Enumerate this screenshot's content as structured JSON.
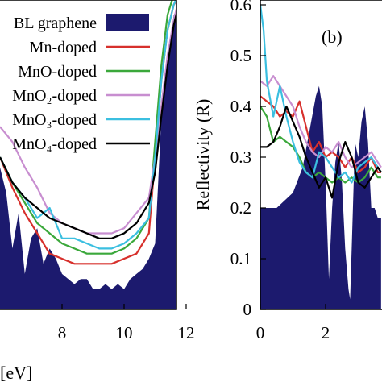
{
  "chart_data": [
    {
      "type": "line",
      "xlabel": "[eV]",
      "xlim": [
        6,
        12
      ],
      "x_ticks": [
        "8",
        "10",
        "12"
      ],
      "legend_position": "top-left",
      "series": [
        {
          "name": "BL graphene",
          "color": "#1c1a6e",
          "fill": true,
          "x": [
            6.0,
            6.2,
            6.4,
            6.6,
            6.8,
            7.0,
            7.2,
            7.4,
            7.6,
            7.8,
            8.0,
            8.2,
            8.4,
            8.6,
            8.8,
            9.0,
            9.2,
            9.4,
            9.6,
            9.8,
            10.0,
            10.2,
            10.4,
            10.6,
            10.8,
            11.0,
            11.1,
            11.2,
            11.4,
            11.6,
            11.8,
            12.0
          ],
          "y": [
            0.28,
            0.23,
            0.12,
            0.19,
            0.07,
            0.14,
            0.16,
            0.09,
            0.12,
            0.1,
            0.07,
            0.06,
            0.05,
            0.06,
            0.06,
            0.04,
            0.04,
            0.05,
            0.04,
            0.05,
            0.04,
            0.06,
            0.07,
            0.08,
            0.1,
            0.13,
            0.25,
            0.38,
            0.5,
            0.58,
            0.6,
            0.62
          ]
        },
        {
          "name": "Mn-doped",
          "color": "#d7302c",
          "x": [
            6.0,
            6.4,
            6.8,
            7.2,
            7.6,
            8.0,
            8.4,
            8.8,
            9.2,
            9.6,
            10.0,
            10.4,
            10.8,
            11.0,
            11.2,
            11.4,
            11.6,
            11.8,
            12.0
          ],
          "y": [
            0.3,
            0.24,
            0.19,
            0.15,
            0.11,
            0.1,
            0.09,
            0.09,
            0.09,
            0.09,
            0.1,
            0.11,
            0.15,
            0.3,
            0.45,
            0.55,
            0.6,
            0.62,
            0.63
          ]
        },
        {
          "name": "MnO-doped",
          "color": "#3ba83b",
          "x": [
            6.0,
            6.4,
            6.8,
            7.2,
            7.6,
            8.0,
            8.4,
            8.8,
            9.2,
            9.6,
            10.0,
            10.4,
            10.8,
            11.0,
            11.2,
            11.4,
            11.6,
            11.8,
            12.0
          ],
          "y": [
            0.3,
            0.25,
            0.21,
            0.17,
            0.15,
            0.13,
            0.12,
            0.11,
            0.11,
            0.11,
            0.12,
            0.14,
            0.18,
            0.33,
            0.48,
            0.58,
            0.62,
            0.64,
            0.65
          ]
        },
        {
          "name": "MnO₂-doped",
          "color": "#c88ed0",
          "x": [
            6.0,
            6.4,
            6.8,
            7.2,
            7.6,
            8.0,
            8.4,
            8.8,
            9.2,
            9.6,
            10.0,
            10.4,
            10.8,
            11.0,
            11.2,
            11.4,
            11.6,
            11.8,
            12.0
          ],
          "y": [
            0.36,
            0.33,
            0.28,
            0.24,
            0.19,
            0.17,
            0.16,
            0.15,
            0.15,
            0.15,
            0.16,
            0.19,
            0.22,
            0.3,
            0.4,
            0.5,
            0.57,
            0.62,
            0.65
          ]
        },
        {
          "name": "MnO₃-doped",
          "color": "#3bbfe0",
          "x": [
            6.0,
            6.4,
            6.8,
            7.2,
            7.6,
            8.0,
            8.4,
            8.8,
            9.2,
            9.6,
            10.0,
            10.4,
            10.8,
            11.0,
            11.2,
            11.4,
            11.6,
            11.8,
            12.0
          ],
          "y": [
            0.3,
            0.25,
            0.22,
            0.18,
            0.2,
            0.14,
            0.14,
            0.13,
            0.12,
            0.12,
            0.13,
            0.15,
            0.18,
            0.3,
            0.45,
            0.55,
            0.6,
            0.63,
            0.65
          ]
        },
        {
          "name": "MnO₄-doped",
          "color": "#000000",
          "x": [
            6.0,
            6.4,
            6.8,
            7.2,
            7.6,
            8.0,
            8.4,
            8.8,
            9.2,
            9.6,
            10.0,
            10.4,
            10.8,
            11.0,
            11.2,
            11.4,
            11.6,
            11.8,
            12.0
          ],
          "y": [
            0.3,
            0.25,
            0.22,
            0.2,
            0.18,
            0.17,
            0.16,
            0.15,
            0.14,
            0.14,
            0.15,
            0.17,
            0.21,
            0.27,
            0.38,
            0.48,
            0.56,
            0.61,
            0.64
          ]
        }
      ]
    },
    {
      "type": "line",
      "panel_label": "(b)",
      "ylabel": "Reflectivity (R)",
      "xlim": [
        0,
        3.7
      ],
      "ylim": [
        0,
        0.6
      ],
      "x_ticks": [
        "0",
        "2"
      ],
      "y_ticks": [
        "0",
        "0.1",
        "0.2",
        "0.3",
        "0.4",
        "0.5",
        "0.6"
      ],
      "series": [
        {
          "name": "BL graphene",
          "color": "#1c1a6e",
          "fill": true,
          "x": [
            0.0,
            0.5,
            1.0,
            1.3,
            1.5,
            1.7,
            1.8,
            1.9,
            2.0,
            2.1,
            2.2,
            2.3,
            2.4,
            2.5,
            2.6,
            2.7,
            2.75,
            2.8,
            2.9,
            3.0,
            3.1,
            3.2,
            3.3,
            3.4,
            3.5,
            3.6,
            3.7
          ],
          "y": [
            0.2,
            0.2,
            0.23,
            0.28,
            0.35,
            0.42,
            0.44,
            0.4,
            0.25,
            0.06,
            0.2,
            0.29,
            0.33,
            0.25,
            0.12,
            0.04,
            0.02,
            0.12,
            0.33,
            0.3,
            0.37,
            0.4,
            0.33,
            0.2,
            0.2,
            0.18,
            0.18
          ]
        },
        {
          "name": "Mn-doped",
          "color": "#d7302c",
          "x": [
            0.0,
            0.2,
            0.4,
            0.6,
            0.8,
            1.0,
            1.2,
            1.4,
            1.6,
            1.8,
            2.0,
            2.2,
            2.4,
            2.6,
            2.8,
            3.0,
            3.2,
            3.4,
            3.6,
            3.7
          ],
          "y": [
            0.42,
            0.41,
            0.4,
            0.38,
            0.39,
            0.38,
            0.41,
            0.36,
            0.31,
            0.33,
            0.3,
            0.31,
            0.3,
            0.28,
            0.3,
            0.27,
            0.28,
            0.3,
            0.27,
            0.27
          ]
        },
        {
          "name": "MnO-doped",
          "color": "#3ba83b",
          "x": [
            0.0,
            0.2,
            0.4,
            0.6,
            0.8,
            1.0,
            1.2,
            1.4,
            1.6,
            1.8,
            2.0,
            2.2,
            2.4,
            2.6,
            2.8,
            3.0,
            3.2,
            3.4,
            3.6,
            3.7
          ],
          "y": [
            0.4,
            0.38,
            0.33,
            0.34,
            0.33,
            0.32,
            0.3,
            0.27,
            0.26,
            0.27,
            0.26,
            0.25,
            0.26,
            0.25,
            0.26,
            0.25,
            0.26,
            0.28,
            0.26,
            0.26
          ]
        },
        {
          "name": "MnO₂-doped",
          "color": "#c88ed0",
          "x": [
            0.0,
            0.2,
            0.4,
            0.6,
            0.8,
            1.0,
            1.2,
            1.4,
            1.6,
            1.8,
            2.0,
            2.2,
            2.4,
            2.6,
            2.8,
            3.0,
            3.2,
            3.4,
            3.6,
            3.7
          ],
          "y": [
            0.45,
            0.44,
            0.46,
            0.44,
            0.42,
            0.4,
            0.36,
            0.33,
            0.31,
            0.3,
            0.32,
            0.31,
            0.33,
            0.3,
            0.28,
            0.29,
            0.3,
            0.31,
            0.29,
            0.28
          ]
        },
        {
          "name": "MnO₃-doped",
          "color": "#3bbfe0",
          "x": [
            0.0,
            0.1,
            0.2,
            0.4,
            0.6,
            0.8,
            1.0,
            1.2,
            1.4,
            1.6,
            1.8,
            2.0,
            2.2,
            2.4,
            2.6,
            2.8,
            3.0,
            3.2,
            3.4,
            3.6,
            3.7
          ],
          "y": [
            0.6,
            0.55,
            0.45,
            0.38,
            0.44,
            0.38,
            0.33,
            0.29,
            0.27,
            0.26,
            0.31,
            0.3,
            0.28,
            0.26,
            0.27,
            0.25,
            0.28,
            0.29,
            0.3,
            0.28,
            0.27
          ]
        },
        {
          "name": "MnO₄-doped",
          "color": "#000000",
          "x": [
            0.0,
            0.2,
            0.4,
            0.6,
            0.8,
            1.0,
            1.2,
            1.4,
            1.6,
            1.8,
            2.0,
            2.2,
            2.4,
            2.6,
            2.8,
            3.0,
            3.2,
            3.4,
            3.6,
            3.7
          ],
          "y": [
            0.32,
            0.32,
            0.33,
            0.36,
            0.4,
            0.37,
            0.34,
            0.3,
            0.27,
            0.24,
            0.26,
            0.22,
            0.29,
            0.33,
            0.3,
            0.25,
            0.24,
            0.26,
            0.28,
            0.27
          ]
        }
      ]
    }
  ]
}
